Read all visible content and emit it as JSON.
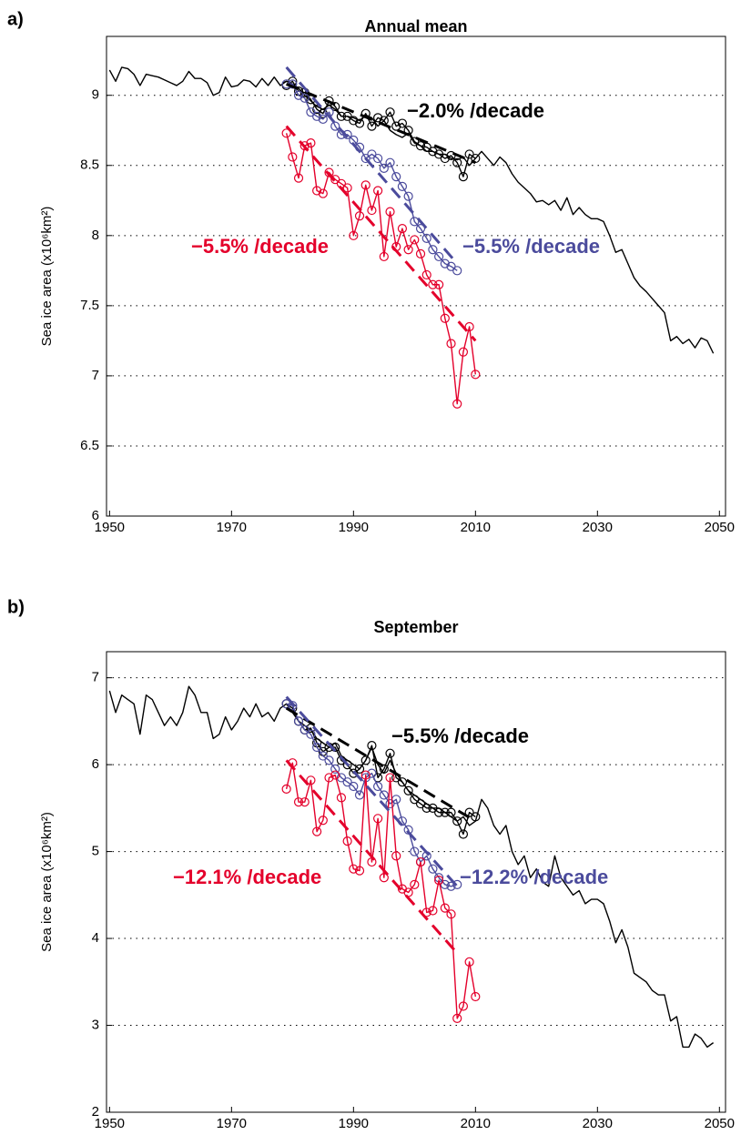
{
  "chart_data": [
    {
      "type": "line",
      "label": "a)",
      "title": "Annual mean",
      "y_label": "Sea ice area (x10⁶km²)",
      "xlim": [
        1949.5,
        2051
      ],
      "xticks": [
        1950,
        1970,
        1990,
        2010,
        2030,
        2050
      ],
      "ylim": [
        6,
        9.42
      ],
      "yticks": [
        6,
        6.5,
        7,
        7.5,
        8,
        8.5,
        9
      ],
      "grid": true,
      "series": [
        {
          "color": "#000000",
          "marker": null,
          "dash": false,
          "x": [
            1950,
            1951,
            1952,
            1953,
            1954,
            1955,
            1956,
            1957,
            1958,
            1959,
            1960,
            1961,
            1962,
            1963,
            1964,
            1965,
            1966,
            1967,
            1968,
            1969,
            1970,
            1971,
            1972,
            1973,
            1974,
            1975,
            1976,
            1977,
            1978,
            1979,
            1980,
            1981,
            1982,
            1983,
            1984,
            1985,
            1986,
            1987,
            1988,
            1989,
            1990,
            1991,
            1992,
            1993,
            1994,
            1995,
            1996,
            1997,
            1998,
            1999,
            2000,
            2001,
            2002,
            2003,
            2004,
            2005,
            2006,
            2007,
            2008,
            2009,
            2010,
            2011,
            2012,
            2013,
            2014,
            2015,
            2016,
            2017,
            2018,
            2019,
            2020,
            2021,
            2022,
            2023,
            2024,
            2025,
            2026,
            2027,
            2028,
            2029,
            2030,
            2031,
            2032,
            2033,
            2034,
            2035,
            2036,
            2037,
            2038,
            2039,
            2040,
            2041,
            2042,
            2043,
            2044,
            2045,
            2046,
            2047,
            2048,
            2049
          ],
          "values": [
            9.18,
            9.1,
            9.2,
            9.19,
            9.15,
            9.07,
            9.15,
            9.14,
            9.13,
            9.11,
            9.09,
            9.07,
            9.1,
            9.17,
            9.12,
            9.12,
            9.09,
            9.0,
            9.02,
            9.13,
            9.06,
            9.07,
            9.11,
            9.1,
            9.06,
            9.12,
            9.07,
            9.13,
            9.07,
            9.1,
            9.08,
            9.05,
            9.0,
            8.96,
            8.92,
            8.9,
            8.93,
            8.9,
            8.85,
            8.85,
            8.84,
            8.82,
            8.86,
            8.84,
            8.78,
            8.82,
            8.75,
            8.72,
            8.7,
            8.73,
            8.66,
            8.64,
            8.6,
            8.6,
            8.58,
            8.58,
            8.55,
            8.54,
            8.56,
            8.5,
            8.55,
            8.6,
            8.55,
            8.5,
            8.56,
            8.52,
            8.44,
            8.38,
            8.34,
            8.3,
            8.24,
            8.25,
            8.22,
            8.25,
            8.18,
            8.27,
            8.15,
            8.2,
            8.15,
            8.12,
            8.12,
            8.1,
            8.0,
            7.88,
            7.9,
            7.8,
            7.7,
            7.64,
            7.6,
            7.55,
            7.5,
            7.45,
            7.25,
            7.28,
            7.23,
            7.26,
            7.2,
            7.27,
            7.25,
            7.16
          ]
        },
        {
          "color": "#000000",
          "marker": "circle",
          "dash": false,
          "x": [
            1979,
            1980,
            1981,
            1982,
            1983,
            1984,
            1985,
            1986,
            1987,
            1988,
            1989,
            1990,
            1991,
            1992,
            1993,
            1994,
            1995,
            1996,
            1997,
            1998,
            1999,
            2000,
            2001,
            2002,
            2003,
            2004,
            2005,
            2006,
            2007,
            2008,
            2009,
            2010
          ],
          "values": [
            9.07,
            9.1,
            9.03,
            9.02,
            8.97,
            8.9,
            8.87,
            8.96,
            8.92,
            8.85,
            8.85,
            8.82,
            8.8,
            8.87,
            8.78,
            8.84,
            8.82,
            8.88,
            8.78,
            8.8,
            8.75,
            8.67,
            8.64,
            8.63,
            8.6,
            8.58,
            8.55,
            8.57,
            8.52,
            8.42,
            8.58,
            8.55
          ]
        },
        {
          "color": "#4b4b9c",
          "marker": "circle",
          "dash": false,
          "x": [
            1979,
            1980,
            1981,
            1982,
            1983,
            1984,
            1985,
            1986,
            1987,
            1988,
            1989,
            1990,
            1991,
            1992,
            1993,
            1994,
            1995,
            1996,
            1997,
            1998,
            1999,
            2000,
            2001,
            2002,
            2003,
            2004,
            2005,
            2006,
            2007
          ],
          "values": [
            9.08,
            9.08,
            9.0,
            8.98,
            8.88,
            8.85,
            8.83,
            8.88,
            8.78,
            8.72,
            8.72,
            8.68,
            8.63,
            8.55,
            8.58,
            8.55,
            8.48,
            8.52,
            8.42,
            8.35,
            8.28,
            8.1,
            8.05,
            7.98,
            7.9,
            7.85,
            7.8,
            7.78,
            7.75
          ]
        },
        {
          "color": "#e4002b",
          "marker": "circle",
          "dash": false,
          "x": [
            1979,
            1980,
            1981,
            1982,
            1983,
            1984,
            1985,
            1986,
            1987,
            1988,
            1989,
            1990,
            1991,
            1992,
            1993,
            1994,
            1995,
            1996,
            1997,
            1998,
            1999,
            2000,
            2001,
            2002,
            2003,
            2004,
            2005,
            2006,
            2007,
            2008,
            2009,
            2010
          ],
          "values": [
            8.73,
            8.56,
            8.41,
            8.64,
            8.66,
            8.32,
            8.3,
            8.45,
            8.4,
            8.37,
            8.34,
            8.0,
            8.14,
            8.36,
            8.18,
            8.32,
            7.85,
            8.17,
            7.92,
            8.05,
            7.9,
            7.97,
            7.87,
            7.72,
            7.65,
            7.65,
            7.41,
            7.23,
            6.8,
            7.17,
            7.35,
            7.01
          ]
        },
        {
          "color": "#000000",
          "marker": null,
          "dash": true,
          "x": [
            1979,
            2010
          ],
          "values": [
            9.08,
            8.52
          ]
        },
        {
          "color": "#4b4b9c",
          "marker": null,
          "dash": true,
          "x": [
            1979,
            2007
          ],
          "values": [
            9.2,
            7.8
          ]
        },
        {
          "color": "#e4002b",
          "marker": null,
          "dash": true,
          "x": [
            1979,
            2010
          ],
          "values": [
            8.78,
            7.25
          ]
        }
      ],
      "annotations": [
        {
          "text": "−2.0% /decade",
          "color": "#000000"
        },
        {
          "text": "−5.5% /decade",
          "color": "#e4002b"
        },
        {
          "text": "−5.5% /decade",
          "color": "#4b4b9c"
        }
      ]
    },
    {
      "type": "line",
      "label": "b)",
      "title": "September",
      "y_label": "Sea ice area (x10⁶km²)",
      "xlim": [
        1949.5,
        2051
      ],
      "xticks": [
        1950,
        1970,
        1990,
        2010,
        2030,
        2050
      ],
      "ylim": [
        2,
        7.3
      ],
      "yticks": [
        2,
        3,
        4,
        5,
        6,
        7
      ],
      "grid": true,
      "series": [
        {
          "color": "#000000",
          "marker": null,
          "dash": false,
          "x": [
            1950,
            1951,
            1952,
            1953,
            1954,
            1955,
            1956,
            1957,
            1958,
            1959,
            1960,
            1961,
            1962,
            1963,
            1964,
            1965,
            1966,
            1967,
            1968,
            1969,
            1970,
            1971,
            1972,
            1973,
            1974,
            1975,
            1976,
            1977,
            1978,
            1979,
            1980,
            1981,
            1982,
            1983,
            1984,
            1985,
            1986,
            1987,
            1988,
            1989,
            1990,
            1991,
            1992,
            1993,
            1994,
            1995,
            1996,
            1997,
            1998,
            1999,
            2000,
            2001,
            2002,
            2003,
            2004,
            2005,
            2006,
            2007,
            2008,
            2009,
            2010,
            2011,
            2012,
            2013,
            2014,
            2015,
            2016,
            2017,
            2018,
            2019,
            2020,
            2021,
            2022,
            2023,
            2024,
            2025,
            2026,
            2027,
            2028,
            2029,
            2030,
            2031,
            2032,
            2033,
            2034,
            2035,
            2036,
            2037,
            2038,
            2039,
            2040,
            2041,
            2042,
            2043,
            2044,
            2045,
            2046,
            2047,
            2048,
            2049
          ],
          "values": [
            6.85,
            6.6,
            6.8,
            6.75,
            6.7,
            6.35,
            6.8,
            6.75,
            6.6,
            6.45,
            6.55,
            6.45,
            6.6,
            6.9,
            6.8,
            6.6,
            6.6,
            6.3,
            6.35,
            6.55,
            6.4,
            6.5,
            6.65,
            6.55,
            6.7,
            6.55,
            6.6,
            6.5,
            6.65,
            6.7,
            6.6,
            6.5,
            6.45,
            6.4,
            6.3,
            6.25,
            6.2,
            6.25,
            6.1,
            6.05,
            6.0,
            5.95,
            6.05,
            6.2,
            6.0,
            5.9,
            6.05,
            5.9,
            5.8,
            5.7,
            5.65,
            5.6,
            5.55,
            5.5,
            5.5,
            5.45,
            5.4,
            5.35,
            5.4,
            5.3,
            5.35,
            5.6,
            5.5,
            5.3,
            5.2,
            5.3,
            5.0,
            4.85,
            4.95,
            4.7,
            4.8,
            4.65,
            4.6,
            4.95,
            4.7,
            4.6,
            4.5,
            4.55,
            4.4,
            4.45,
            4.45,
            4.4,
            4.2,
            3.95,
            4.1,
            3.9,
            3.6,
            3.55,
            3.5,
            3.4,
            3.35,
            3.35,
            3.05,
            3.1,
            2.75,
            2.75,
            2.9,
            2.85,
            2.75,
            2.8
          ]
        },
        {
          "color": "#000000",
          "marker": "circle",
          "dash": false,
          "x": [
            1979,
            1980,
            1981,
            1982,
            1983,
            1984,
            1985,
            1986,
            1987,
            1988,
            1989,
            1990,
            1991,
            1992,
            1993,
            1994,
            1995,
            1996,
            1997,
            1998,
            1999,
            2000,
            2001,
            2002,
            2003,
            2004,
            2005,
            2006,
            2007,
            2008,
            2009,
            2010
          ],
          "values": [
            6.7,
            6.65,
            6.5,
            6.4,
            6.42,
            6.25,
            6.15,
            6.2,
            6.2,
            6.05,
            6.0,
            5.9,
            5.95,
            6.05,
            6.22,
            5.85,
            5.95,
            6.13,
            5.85,
            5.8,
            5.7,
            5.6,
            5.55,
            5.5,
            5.5,
            5.45,
            5.45,
            5.45,
            5.35,
            5.2,
            5.45,
            5.4
          ]
        },
        {
          "color": "#4b4b9c",
          "marker": "circle",
          "dash": false,
          "x": [
            1979,
            1980,
            1981,
            1982,
            1983,
            1984,
            1985,
            1986,
            1987,
            1988,
            1989,
            1990,
            1991,
            1992,
            1993,
            1994,
            1995,
            1996,
            1997,
            1998,
            1999,
            2000,
            2001,
            2002,
            2003,
            2004,
            2005,
            2006,
            2007
          ],
          "values": [
            6.7,
            6.68,
            6.5,
            6.4,
            6.35,
            6.2,
            6.1,
            6.05,
            5.95,
            5.85,
            5.8,
            5.75,
            5.65,
            5.85,
            5.9,
            5.75,
            5.65,
            5.55,
            5.6,
            5.35,
            5.25,
            5.0,
            4.88,
            4.95,
            4.8,
            4.7,
            4.62,
            4.6,
            4.62
          ]
        },
        {
          "color": "#e4002b",
          "marker": "circle",
          "dash": false,
          "x": [
            1979,
            1980,
            1981,
            1982,
            1983,
            1984,
            1985,
            1986,
            1987,
            1988,
            1989,
            1990,
            1991,
            1992,
            1993,
            1994,
            1995,
            1996,
            1997,
            1998,
            1999,
            2000,
            2001,
            2002,
            2003,
            2004,
            2005,
            2006,
            2007,
            2008,
            2009,
            2010
          ],
          "values": [
            5.72,
            6.02,
            5.57,
            5.57,
            5.82,
            5.23,
            5.36,
            5.85,
            5.88,
            5.62,
            5.12,
            4.8,
            4.78,
            5.88,
            4.88,
            5.38,
            4.7,
            5.85,
            4.95,
            4.57,
            4.53,
            4.62,
            4.88,
            4.3,
            4.32,
            4.67,
            4.35,
            4.28,
            3.08,
            3.22,
            3.73,
            3.33
          ]
        },
        {
          "color": "#000000",
          "marker": null,
          "dash": true,
          "x": [
            1979,
            2010
          ],
          "values": [
            6.65,
            5.35
          ]
        },
        {
          "color": "#4b4b9c",
          "marker": null,
          "dash": true,
          "x": [
            1979,
            2007
          ],
          "values": [
            6.78,
            4.6
          ]
        },
        {
          "color": "#e4002b",
          "marker": null,
          "dash": true,
          "x": [
            1979,
            2007
          ],
          "values": [
            6.05,
            3.83
          ]
        }
      ],
      "annotations": [
        {
          "text": "−5.5% /decade",
          "color": "#000000"
        },
        {
          "text": "−12.1% /decade",
          "color": "#e4002b"
        },
        {
          "text": "−12.2% /decade",
          "color": "#4b4b9c"
        }
      ]
    }
  ]
}
